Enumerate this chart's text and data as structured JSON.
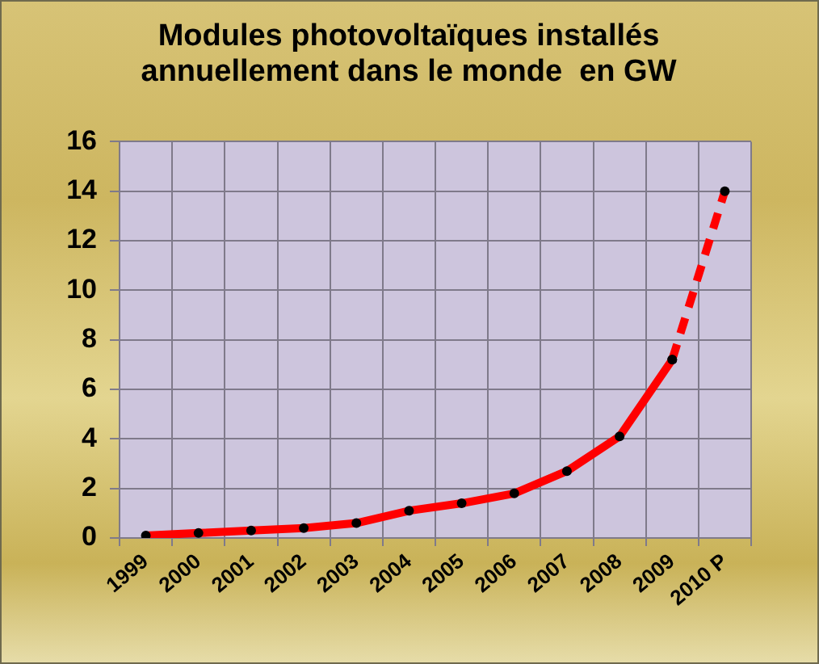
{
  "chart_data": {
    "type": "line",
    "title": "Modules photovoltaïques installés annuellement dans le monde  en GW",
    "categories": [
      "1999",
      "2000",
      "2001",
      "2002",
      "2003",
      "2004",
      "2005",
      "2006",
      "2007",
      "2008",
      "2009",
      "2010 P"
    ],
    "series": [
      {
        "color": "#ff0000",
        "line_style": "solid",
        "values": [
          0.1,
          0.2,
          0.3,
          0.4,
          0.6,
          1.1,
          1.4,
          1.8,
          2.7,
          4.1,
          7.2,
          null
        ]
      },
      {
        "color": "#ff0000",
        "line_style": "dashed",
        "values": [
          null,
          null,
          null,
          null,
          null,
          null,
          null,
          null,
          null,
          null,
          7.2,
          14
        ]
      }
    ],
    "ylim": [
      0,
      16
    ],
    "yticks": [
      0,
      2,
      4,
      6,
      8,
      10,
      12,
      14,
      16
    ],
    "grid": true,
    "legend": false,
    "marker": "circle"
  }
}
